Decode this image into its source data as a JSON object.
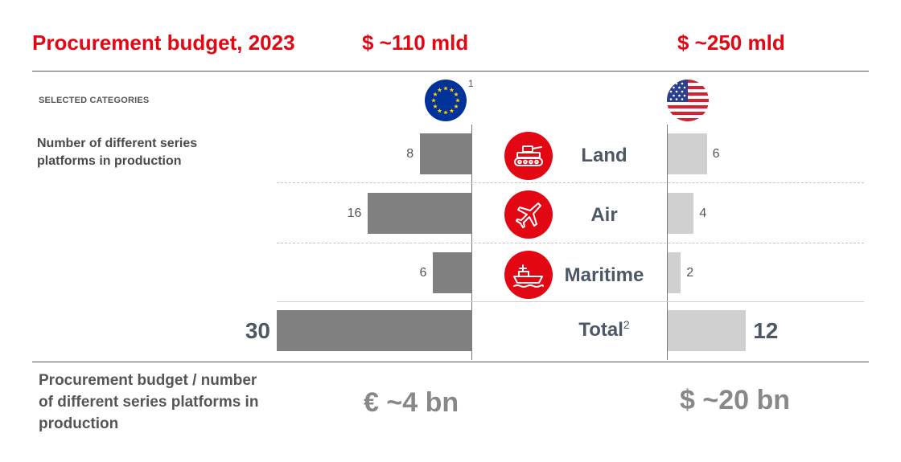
{
  "header": {
    "title": "Procurement budget, 2023",
    "eu_budget": "$ ~110 mld",
    "us_budget": "$ ~250 mld"
  },
  "section_label": "SELECTED CATEGORIES",
  "left_label": "Number of different series platforms in production",
  "eu_flag_footnote": "1",
  "total_label": "Total",
  "total_footnote": "2",
  "bottom": {
    "label": "Procurement budget / number of different series platforms in production",
    "eu_value": "€ ~4  bn",
    "us_value": "$ ~20 bn"
  },
  "icons": [
    "tank-icon",
    "airplane-icon",
    "ship-icon"
  ],
  "colors": {
    "accent": "#e30613",
    "eu_bar": "#808080",
    "us_bar": "#d0d0d0",
    "eu_flag": "#003399",
    "eu_stars": "#ffcc00"
  },
  "chart_data": {
    "type": "bar",
    "categories": [
      "Land",
      "Air",
      "Maritime"
    ],
    "series": [
      {
        "name": "EU",
        "values": [
          8,
          16,
          6
        ],
        "total": 30
      },
      {
        "name": "US",
        "values": [
          6,
          4,
          2
        ],
        "total": 12
      }
    ],
    "grid": false
  }
}
